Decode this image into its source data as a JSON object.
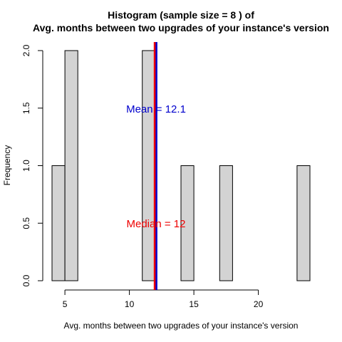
{
  "chart_data": {
    "type": "bar",
    "title_line1": "Histogram (sample size =  8 ) of",
    "title_line2": "Avg. months between two upgrades of your instance's version",
    "xlabel": "Avg. months between two upgrades of your instance's version",
    "ylabel": "Frequency",
    "xlim": [
      4,
      24
    ],
    "ylim": [
      0,
      2
    ],
    "x_ticks": [
      5,
      10,
      15,
      20
    ],
    "y_ticks": [
      0.0,
      0.5,
      1.0,
      1.5,
      2.0
    ],
    "x_tick_labels": [
      "5",
      "10",
      "15",
      "20"
    ],
    "y_tick_labels": [
      "0.0",
      "0.5",
      "1.0",
      "1.5",
      "2.0"
    ],
    "bins": [
      {
        "x0": 4,
        "x1": 5,
        "count": 1
      },
      {
        "x0": 5,
        "x1": 6,
        "count": 2
      },
      {
        "x0": 11,
        "x1": 12,
        "count": 2
      },
      {
        "x0": 14,
        "x1": 15,
        "count": 1
      },
      {
        "x0": 17,
        "x1": 18,
        "count": 1
      },
      {
        "x0": 23,
        "x1": 24,
        "count": 1
      }
    ],
    "bar_color": "#d3d3d3",
    "mean": 12.1,
    "median": 12,
    "mean_label": "Mean = 12.1",
    "median_label": "Median = 12",
    "mean_color": "#0000cd",
    "median_color": "#ee0000"
  }
}
